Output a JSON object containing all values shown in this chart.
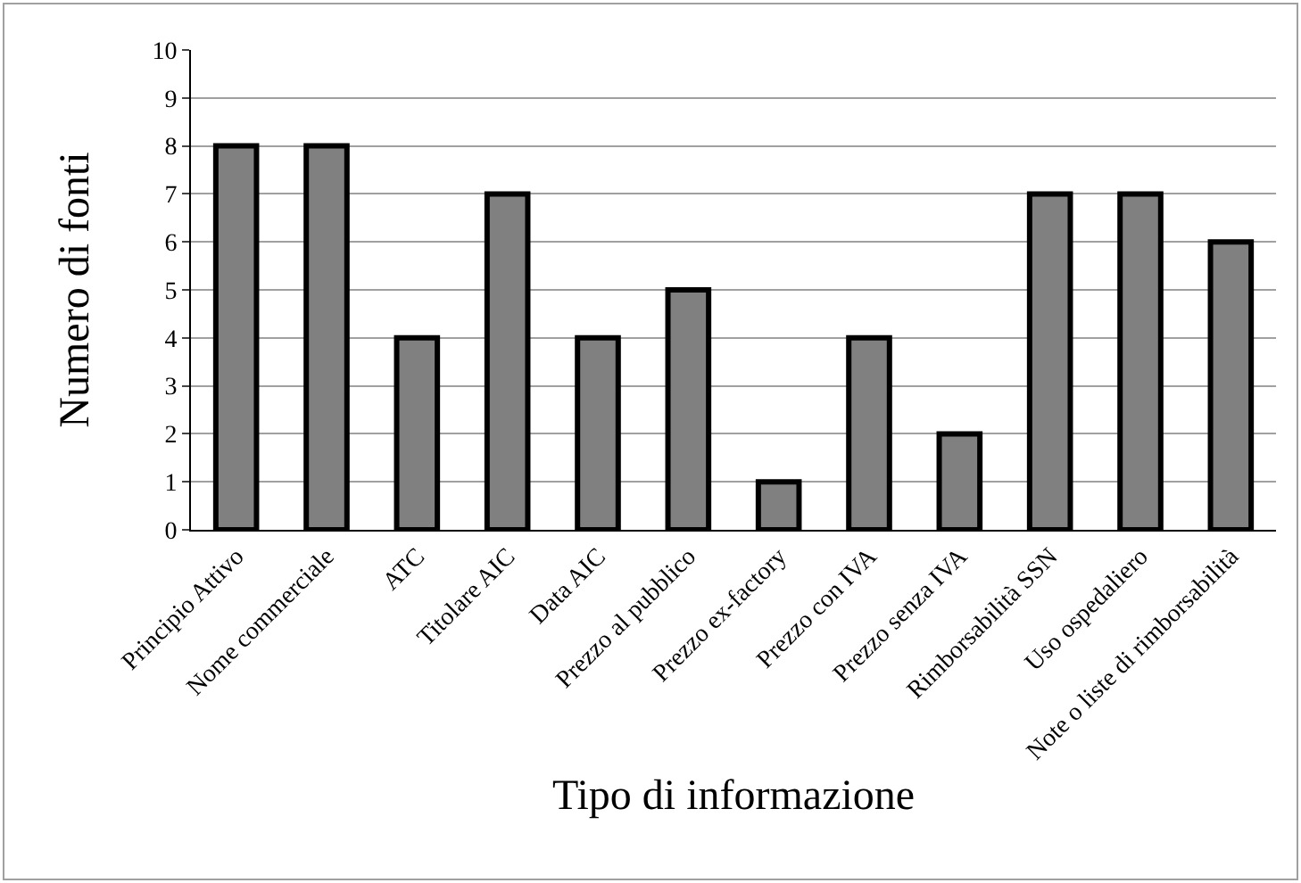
{
  "chart_data": {
    "type": "bar",
    "categories": [
      "Principio Attivo",
      "Nome commerciale",
      "ATC",
      "Titolare AIC",
      "Data AIC",
      "Prezzo al pubblico",
      "Prezzo ex-factory",
      "Prezzo con IVA",
      "Prezzo senza IVA",
      "Rimborsabilità SSN",
      "Uso ospedaliero",
      "Note o liste di rimborsabilità"
    ],
    "values": [
      8,
      8,
      4,
      7,
      4,
      5,
      1,
      4,
      2,
      7,
      7,
      6
    ],
    "color": "#808080",
    "xlabel": "Tipo di informazione",
    "ylabel": "Numero di fonti",
    "ylim": [
      0,
      10
    ],
    "yticks": [
      0,
      1,
      2,
      3,
      4,
      5,
      6,
      7,
      8,
      9,
      10
    ],
    "grid": "y"
  }
}
